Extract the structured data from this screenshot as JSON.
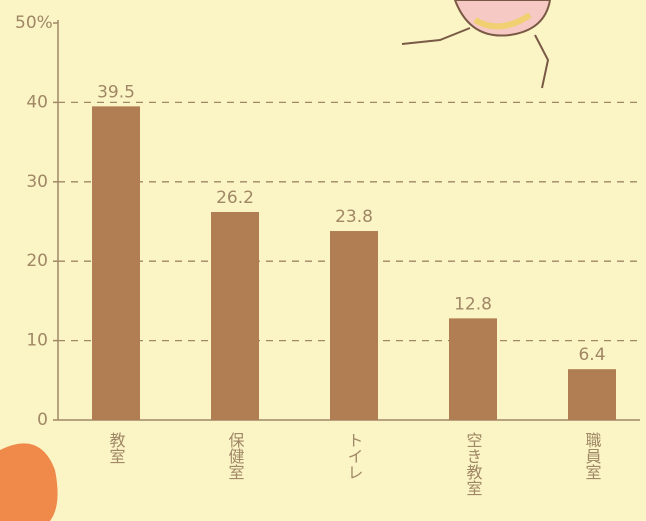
{
  "chart_data": {
    "type": "bar",
    "categories": [
      "教室",
      "保健室",
      "トイレ",
      "空き教室",
      "職員室"
    ],
    "values": [
      39.5,
      26.2,
      23.8,
      12.8,
      6.4
    ],
    "color": "#b07e52",
    "ylim": [
      0,
      50
    ],
    "yticks": [
      0,
      10,
      20,
      30,
      40,
      {
        "value": 50,
        "label": "50%"
      }
    ],
    "grid": true
  }
}
